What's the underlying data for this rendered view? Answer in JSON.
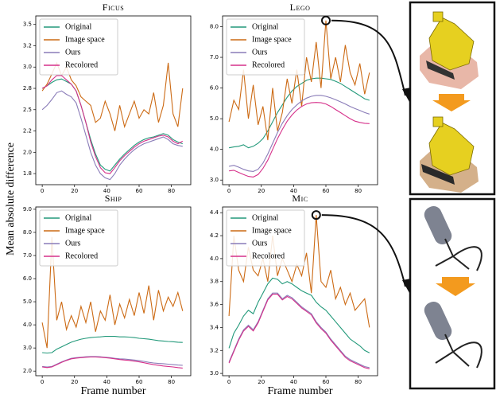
{
  "ylabel": "Mean absolute difference",
  "chart_data": [
    {
      "type": "line",
      "title": "Ficus",
      "x": [
        0,
        3,
        6,
        9,
        12,
        15,
        18,
        21,
        24,
        27,
        30,
        33,
        36,
        39,
        42,
        45,
        48,
        51,
        54,
        57,
        60,
        63,
        66,
        69,
        72,
        75,
        78,
        81,
        84,
        87
      ],
      "xlim": [
        -4,
        92
      ],
      "xticks": [
        0,
        20,
        40,
        60,
        80
      ],
      "ylim": [
        1.62,
        3.6
      ],
      "yticks": [
        {
          "value": 1.75,
          "label": "1.8"
        },
        {
          "value": 2.0,
          "label": "2.0"
        },
        {
          "value": 2.25,
          "label": "2.2"
        },
        {
          "value": 2.5,
          "label": "2.5"
        },
        {
          "value": 2.75,
          "label": "2.8"
        },
        {
          "value": 3.0,
          "label": "3.0"
        },
        {
          "value": 3.25,
          "label": "3.2"
        },
        {
          "value": 3.5,
          "label": "3.5"
        }
      ],
      "series": [
        {
          "name": "Original",
          "color": "#22997a",
          "values": [
            2.75,
            2.78,
            2.82,
            2.85,
            2.86,
            2.83,
            2.8,
            2.72,
            2.55,
            2.35,
            2.15,
            1.98,
            1.85,
            1.8,
            1.78,
            1.85,
            1.92,
            1.98,
            2.03,
            2.08,
            2.12,
            2.15,
            2.17,
            2.18,
            2.2,
            2.22,
            2.2,
            2.15,
            2.12,
            2.1
          ]
        },
        {
          "name": "Image space",
          "color": "#cc6a14",
          "values": [
            2.72,
            2.8,
            2.92,
            3.05,
            2.9,
            3.0,
            2.85,
            2.78,
            2.65,
            2.6,
            2.55,
            2.35,
            2.4,
            2.6,
            2.45,
            2.25,
            2.55,
            2.3,
            2.45,
            2.6,
            2.4,
            2.5,
            2.45,
            2.7,
            2.35,
            2.55,
            3.05,
            2.45,
            2.3,
            2.75
          ]
        },
        {
          "name": "Ours",
          "color": "#8a7cb8",
          "values": [
            2.5,
            2.55,
            2.62,
            2.7,
            2.72,
            2.68,
            2.65,
            2.58,
            2.4,
            2.2,
            2.0,
            1.85,
            1.75,
            1.7,
            1.68,
            1.75,
            1.85,
            1.92,
            1.98,
            2.03,
            2.07,
            2.1,
            2.12,
            2.14,
            2.16,
            2.18,
            2.15,
            2.1,
            2.08,
            2.07
          ]
        },
        {
          "name": "Recolored",
          "color": "#d6308a",
          "values": [
            2.75,
            2.78,
            2.85,
            2.9,
            2.9,
            2.85,
            2.8,
            2.72,
            2.55,
            2.35,
            2.12,
            1.95,
            1.82,
            1.76,
            1.75,
            1.82,
            1.9,
            1.96,
            2.01,
            2.06,
            2.1,
            2.13,
            2.15,
            2.17,
            2.19,
            2.2,
            2.18,
            2.13,
            2.1,
            2.13
          ]
        }
      ]
    },
    {
      "type": "line",
      "title": "Lego",
      "x": [
        0,
        3,
        6,
        9,
        12,
        15,
        18,
        21,
        24,
        27,
        30,
        33,
        36,
        39,
        42,
        45,
        48,
        51,
        54,
        57,
        60,
        63,
        66,
        69,
        72,
        75,
        78,
        81,
        84,
        87
      ],
      "xlim": [
        -4,
        92
      ],
      "xticks": [
        0,
        20,
        40,
        60,
        80
      ],
      "ylim": [
        2.85,
        8.35
      ],
      "yticks": [
        {
          "value": 3,
          "label": "3.0"
        },
        {
          "value": 4,
          "label": "4.0"
        },
        {
          "value": 5,
          "label": "5.0"
        },
        {
          "value": 6,
          "label": "6.0"
        },
        {
          "value": 7,
          "label": "7.0"
        },
        {
          "value": 8,
          "label": "8.0"
        }
      ],
      "series": [
        {
          "name": "Original",
          "color": "#22997a",
          "values": [
            4.05,
            4.08,
            4.1,
            4.15,
            4.05,
            4.1,
            4.2,
            4.35,
            4.6,
            4.9,
            5.2,
            5.45,
            5.7,
            5.9,
            6.05,
            6.15,
            6.25,
            6.3,
            6.32,
            6.32,
            6.3,
            6.28,
            6.22,
            6.15,
            6.05,
            5.95,
            5.85,
            5.75,
            5.65,
            5.6
          ]
        },
        {
          "name": "Image space",
          "color": "#cc6a14",
          "values": [
            4.9,
            5.6,
            5.3,
            6.6,
            5.0,
            6.1,
            4.8,
            5.4,
            4.3,
            6.0,
            4.6,
            5.2,
            6.3,
            5.5,
            6.6,
            5.4,
            7.0,
            6.2,
            7.5,
            6.0,
            8.2,
            6.3,
            7.0,
            6.2,
            7.4,
            6.5,
            6.1,
            6.8,
            5.8,
            6.5
          ]
        },
        {
          "name": "Ours",
          "color": "#8a7cb8",
          "values": [
            3.45,
            3.48,
            3.42,
            3.35,
            3.3,
            3.28,
            3.35,
            3.55,
            3.85,
            4.2,
            4.55,
            4.85,
            5.1,
            5.3,
            5.45,
            5.58,
            5.67,
            5.73,
            5.76,
            5.76,
            5.73,
            5.68,
            5.62,
            5.55,
            5.48,
            5.4,
            5.33,
            5.27,
            5.2,
            5.15
          ]
        },
        {
          "name": "Recolored",
          "color": "#d6308a",
          "values": [
            3.3,
            3.32,
            3.25,
            3.18,
            3.12,
            3.1,
            3.18,
            3.38,
            3.65,
            4.0,
            4.35,
            4.65,
            4.92,
            5.12,
            5.28,
            5.4,
            5.48,
            5.52,
            5.53,
            5.52,
            5.48,
            5.4,
            5.3,
            5.2,
            5.1,
            5.0,
            4.92,
            4.88,
            4.85,
            4.84
          ]
        }
      ]
    },
    {
      "type": "line",
      "title": "Ship",
      "xlabel": "Frame number",
      "x": [
        0,
        3,
        6,
        9,
        12,
        15,
        18,
        21,
        24,
        27,
        30,
        33,
        36,
        39,
        42,
        45,
        48,
        51,
        54,
        57,
        60,
        63,
        66,
        69,
        72,
        75,
        78,
        81,
        84,
        87
      ],
      "xlim": [
        -4,
        92
      ],
      "xticks": [
        0,
        20,
        40,
        60,
        80
      ],
      "ylim": [
        1.8,
        9.1
      ],
      "yticks": [
        {
          "value": 2,
          "label": "2.0"
        },
        {
          "value": 3,
          "label": "3.0"
        },
        {
          "value": 4,
          "label": "4.0"
        },
        {
          "value": 5,
          "label": "5.0"
        },
        {
          "value": 6,
          "label": "6.0"
        },
        {
          "value": 7,
          "label": "7.0"
        },
        {
          "value": 8,
          "label": "8.0"
        },
        {
          "value": 9,
          "label": "9.0"
        }
      ],
      "series": [
        {
          "name": "Original",
          "color": "#22997a",
          "values": [
            2.8,
            2.78,
            2.8,
            2.95,
            3.05,
            3.15,
            3.25,
            3.32,
            3.38,
            3.42,
            3.45,
            3.47,
            3.48,
            3.5,
            3.5,
            3.5,
            3.48,
            3.48,
            3.47,
            3.45,
            3.42,
            3.4,
            3.38,
            3.35,
            3.32,
            3.3,
            3.28,
            3.27,
            3.25,
            3.24
          ]
        },
        {
          "name": "Image space",
          "color": "#cc6a14",
          "values": [
            4.1,
            3.0,
            7.8,
            4.2,
            5.0,
            3.8,
            4.4,
            3.9,
            4.8,
            4.1,
            5.0,
            3.7,
            4.6,
            4.2,
            5.3,
            4.0,
            4.9,
            4.3,
            5.1,
            4.4,
            5.4,
            4.5,
            5.7,
            4.2,
            5.5,
            4.6,
            5.2,
            4.8,
            5.4,
            4.6
          ]
        },
        {
          "name": "Ours",
          "color": "#8a7cb8",
          "values": [
            2.2,
            2.18,
            2.2,
            2.3,
            2.4,
            2.48,
            2.55,
            2.58,
            2.6,
            2.62,
            2.63,
            2.63,
            2.62,
            2.6,
            2.58,
            2.55,
            2.53,
            2.52,
            2.5,
            2.48,
            2.45,
            2.42,
            2.38,
            2.35,
            2.33,
            2.32,
            2.3,
            2.28,
            2.26,
            2.25
          ]
        },
        {
          "name": "Recolored",
          "color": "#d6308a",
          "values": [
            2.18,
            2.15,
            2.18,
            2.28,
            2.38,
            2.46,
            2.53,
            2.56,
            2.58,
            2.6,
            2.61,
            2.61,
            2.6,
            2.58,
            2.56,
            2.53,
            2.5,
            2.48,
            2.46,
            2.43,
            2.4,
            2.36,
            2.32,
            2.28,
            2.25,
            2.22,
            2.2,
            2.18,
            2.15,
            2.13
          ]
        }
      ]
    },
    {
      "type": "line",
      "title": "Mic",
      "xlabel": "Frame number",
      "x": [
        0,
        3,
        6,
        9,
        12,
        15,
        18,
        21,
        24,
        27,
        30,
        33,
        36,
        39,
        42,
        45,
        48,
        51,
        54,
        57,
        60,
        63,
        66,
        69,
        72,
        75,
        78,
        81,
        84,
        87
      ],
      "xlim": [
        -4,
        92
      ],
      "xticks": [
        0,
        20,
        40,
        60,
        80
      ],
      "ylim": [
        2.98,
        4.45
      ],
      "yticks": [
        {
          "value": 3,
          "label": "3.0"
        },
        3.2,
        3.4,
        3.6,
        3.8,
        {
          "value": 4,
          "label": "4.0"
        },
        4.2,
        4.4
      ],
      "series": [
        {
          "name": "Original",
          "color": "#22997a",
          "values": [
            3.22,
            3.35,
            3.42,
            3.5,
            3.55,
            3.52,
            3.62,
            3.7,
            3.78,
            3.83,
            3.82,
            3.78,
            3.8,
            3.78,
            3.75,
            3.72,
            3.7,
            3.68,
            3.62,
            3.58,
            3.55,
            3.5,
            3.45,
            3.4,
            3.35,
            3.3,
            3.27,
            3.24,
            3.2,
            3.18
          ]
        },
        {
          "name": "Image space",
          "color": "#cc6a14",
          "values": [
            3.5,
            4.2,
            3.9,
            3.8,
            4.1,
            3.9,
            3.85,
            4.0,
            3.8,
            4.2,
            3.85,
            4.0,
            3.9,
            3.8,
            3.95,
            3.85,
            4.05,
            3.7,
            4.38,
            3.8,
            3.75,
            3.9,
            3.65,
            3.75,
            3.6,
            3.7,
            3.55,
            3.6,
            3.65,
            3.4
          ]
        },
        {
          "name": "Ours",
          "color": "#8a7cb8",
          "values": [
            3.1,
            3.2,
            3.3,
            3.38,
            3.42,
            3.38,
            3.45,
            3.55,
            3.65,
            3.7,
            3.7,
            3.65,
            3.68,
            3.66,
            3.62,
            3.58,
            3.55,
            3.52,
            3.45,
            3.4,
            3.36,
            3.3,
            3.25,
            3.2,
            3.15,
            3.12,
            3.1,
            3.08,
            3.06,
            3.05
          ]
        },
        {
          "name": "Recolored",
          "color": "#d6308a",
          "values": [
            3.09,
            3.19,
            3.29,
            3.37,
            3.41,
            3.37,
            3.44,
            3.54,
            3.64,
            3.69,
            3.69,
            3.64,
            3.67,
            3.65,
            3.61,
            3.57,
            3.54,
            3.51,
            3.44,
            3.39,
            3.35,
            3.29,
            3.24,
            3.19,
            3.14,
            3.11,
            3.09,
            3.07,
            3.05,
            3.04
          ]
        }
      ]
    }
  ]
}
